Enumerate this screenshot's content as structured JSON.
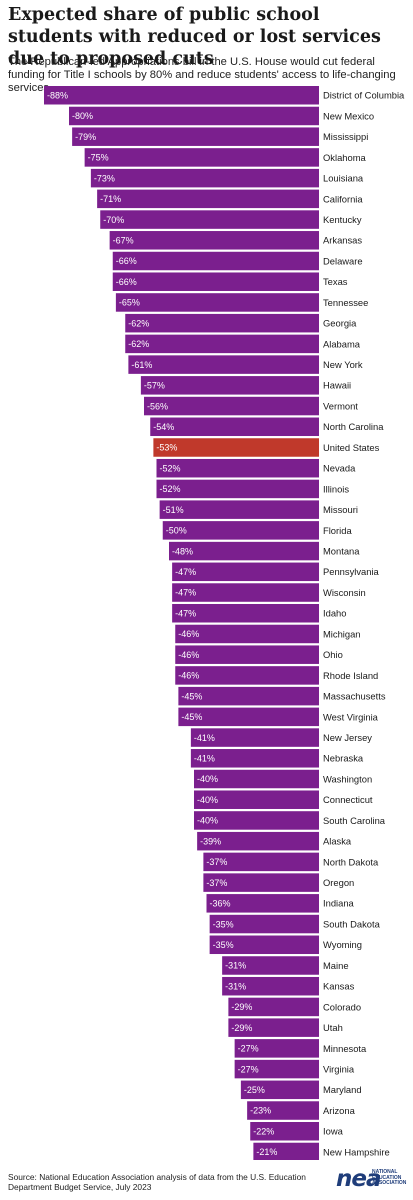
{
  "title": "Expected share of public school students with reduced or lost services due to proposed cuts",
  "subtitle": "The Republican-led Appropriations bill in the U.S. House would cut federal funding for Title I schools by 80% and reduce students' access to life-changing services.",
  "source": "Source: National Education Association analysis of data from the U.S. Education Department Budget Service, July 2023",
  "logo": {
    "mark": "nea",
    "text": "NATIONAL EDUCATION ASSOCIATION"
  },
  "colors": {
    "bar": "#7b1f8e",
    "highlight": "#c0392b",
    "bar_label": "#ffffff",
    "category_label": "#1a1a1a"
  },
  "chart_data": {
    "type": "bar",
    "orientation": "horizontal",
    "highlight": "United States",
    "xlim": [
      -100,
      0
    ],
    "categories": [
      "District of Columbia",
      "New Mexico",
      "Mississippi",
      "Oklahoma",
      "Louisiana",
      "California",
      "Kentucky",
      "Arkansas",
      "Delaware",
      "Texas",
      "Tennessee",
      "Georgia",
      "Alabama",
      "New York",
      "Hawaii",
      "Vermont",
      "North Carolina",
      "United States",
      "Nevada",
      "Illinois",
      "Missouri",
      "Florida",
      "Montana",
      "Pennsylvania",
      "Wisconsin",
      "Idaho",
      "Michigan",
      "Ohio",
      "Rhode Island",
      "Massachusetts",
      "West Virginia",
      "New Jersey",
      "Nebraska",
      "Washington",
      "Connecticut",
      "South Carolina",
      "Alaska",
      "North Dakota",
      "Oregon",
      "Indiana",
      "South Dakota",
      "Wyoming",
      "Maine",
      "Kansas",
      "Colorado",
      "Utah",
      "Minnesota",
      "Virginia",
      "Maryland",
      "Arizona",
      "Iowa",
      "New Hampshire"
    ],
    "values": [
      -88,
      -80,
      -79,
      -75,
      -73,
      -71,
      -70,
      -67,
      -66,
      -66,
      -65,
      -62,
      -62,
      -61,
      -57,
      -56,
      -54,
      -53,
      -52,
      -52,
      -51,
      -50,
      -48,
      -47,
      -47,
      -47,
      -46,
      -46,
      -46,
      -45,
      -45,
      -41,
      -41,
      -40,
      -40,
      -40,
      -39,
      -37,
      -37,
      -36,
      -35,
      -35,
      -31,
      -31,
      -29,
      -29,
      -27,
      -27,
      -25,
      -23,
      -22,
      -21
    ],
    "labels": [
      "-88%",
      "-80%",
      "-79%",
      "-75%",
      "-73%",
      "-71%",
      "-70%",
      "-67%",
      "-66%",
      "-66%",
      "-65%",
      "-62%",
      "-62%",
      "-61%",
      "-57%",
      "-56%",
      "-54%",
      "-53%",
      "-52%",
      "-52%",
      "-51%",
      "-50%",
      "-48%",
      "-47%",
      "-47%",
      "-47%",
      "-46%",
      "-46%",
      "-46%",
      "-45%",
      "-45%",
      "-41%",
      "-41%",
      "-40%",
      "-40%",
      "-40%",
      "-39%",
      "-37%",
      "-37%",
      "-36%",
      "-35%",
      "-35%",
      "-31%",
      "-31%",
      "-29%",
      "-29%",
      "-27%",
      "-27%",
      "-25%",
      "-23%",
      "-22%",
      "-21%"
    ]
  }
}
